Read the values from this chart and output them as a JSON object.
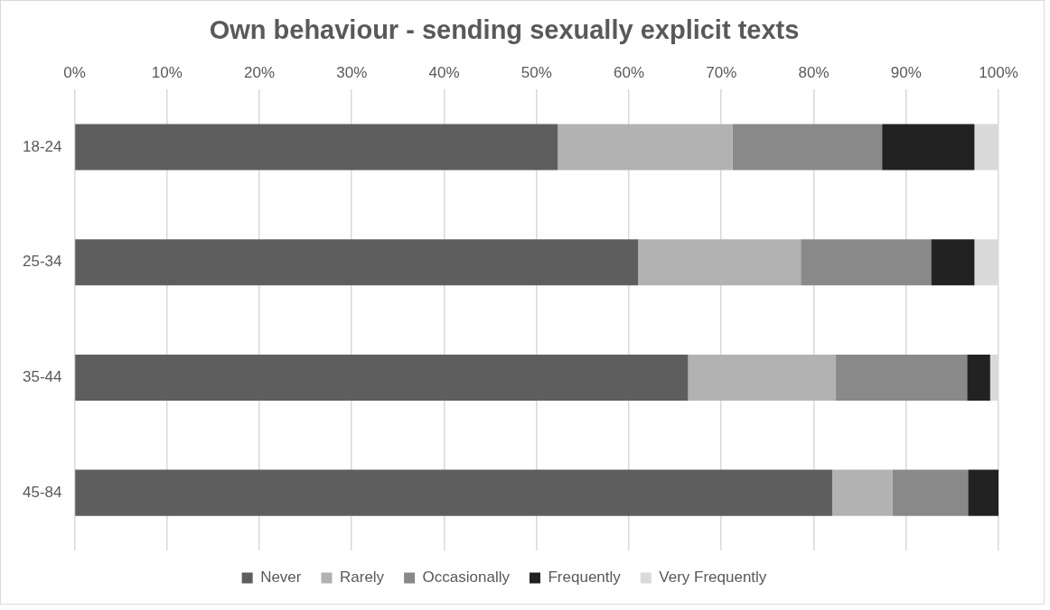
{
  "chart_data": {
    "type": "bar",
    "orientation": "horizontal",
    "stacked": true,
    "title": "Own behaviour - sending sexually explicit texts",
    "categories": [
      "18-24",
      "25-34",
      "35-44",
      "45-84"
    ],
    "series": [
      {
        "name": "Never",
        "color": "#5e5e5e",
        "values": [
          52.3,
          61.0,
          66.4,
          82.0
        ]
      },
      {
        "name": "Rarely",
        "color": "#b2b2b2",
        "values": [
          18.9,
          17.6,
          16.0,
          6.5
        ]
      },
      {
        "name": "Occasionally",
        "color": "#898989",
        "values": [
          16.2,
          14.1,
          14.2,
          8.2
        ]
      },
      {
        "name": "Frequently",
        "color": "#222222",
        "values": [
          10.0,
          4.7,
          2.5,
          3.3
        ]
      },
      {
        "name": "Very Frequently",
        "color": "#dadada",
        "values": [
          2.6,
          2.6,
          0.9,
          0
        ]
      }
    ],
    "xlim": [
      0,
      100
    ],
    "xticks": [
      {
        "value": 0,
        "label": "0%"
      },
      {
        "value": 10,
        "label": "10%"
      },
      {
        "value": 20,
        "label": "20%"
      },
      {
        "value": 30,
        "label": "30%"
      },
      {
        "value": 40,
        "label": "40%"
      },
      {
        "value": 50,
        "label": "50%"
      },
      {
        "value": 60,
        "label": "60%"
      },
      {
        "value": 70,
        "label": "70%"
      },
      {
        "value": 80,
        "label": "80%"
      },
      {
        "value": 90,
        "label": "90%"
      },
      {
        "value": 100,
        "label": "100%"
      }
    ],
    "grid": "x",
    "legend": "bottom"
  }
}
